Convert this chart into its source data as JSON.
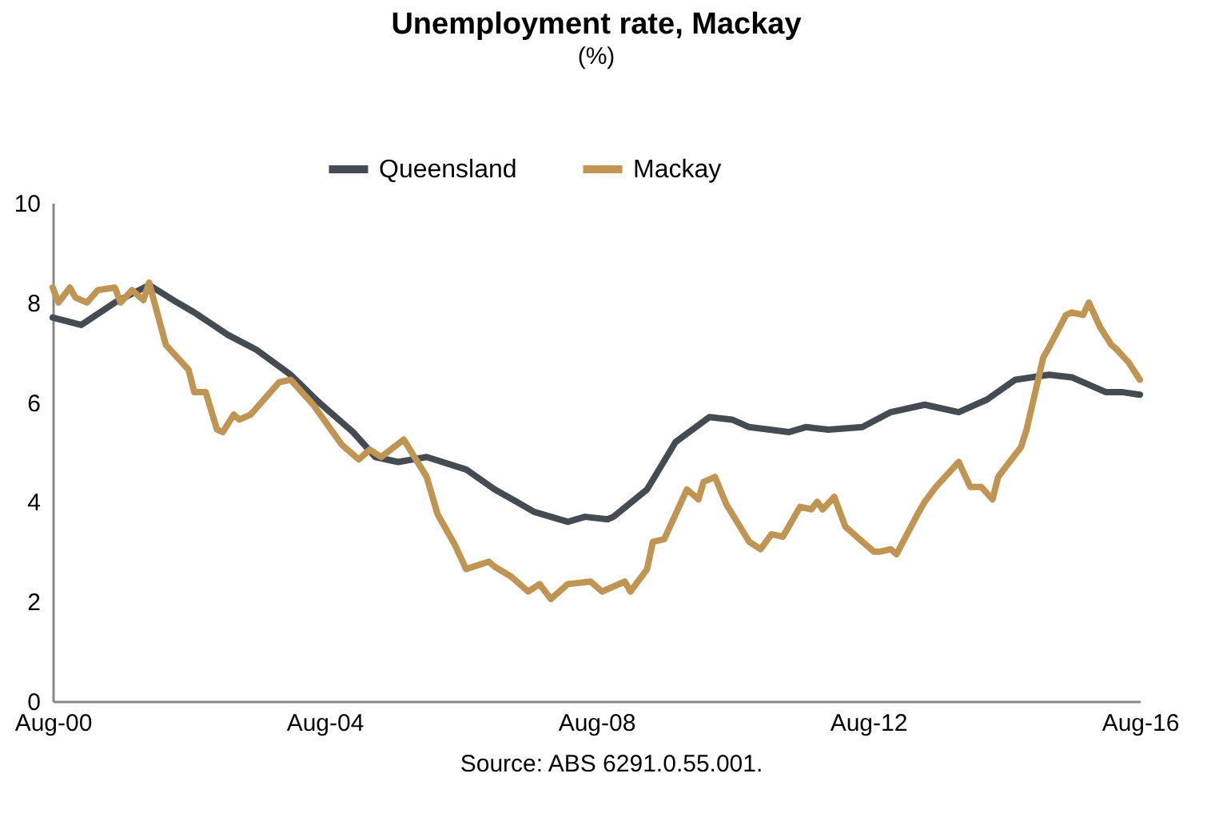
{
  "chart_data": {
    "type": "line",
    "title": "Unemployment rate, Mackay",
    "subtitle": "(%)",
    "annotations": [
      "Source: ABS 6291.0.55.001."
    ],
    "legend": "top",
    "grid": false,
    "marker": "none",
    "line_style": "solid",
    "xlim": [
      "2000-08",
      "2016-08"
    ],
    "xticks": [
      {
        "value": "2000-08",
        "label": "Aug-00"
      },
      {
        "value": "2004-08",
        "label": "Aug-04"
      },
      {
        "value": "2008-08",
        "label": "Aug-08"
      },
      {
        "value": "2012-08",
        "label": "Aug-12"
      },
      {
        "value": "2016-08",
        "label": "Aug-16"
      }
    ],
    "ylim": [
      0,
      10
    ],
    "yticks": [
      0,
      2,
      4,
      6,
      8,
      10
    ],
    "series": [
      {
        "name": "Queensland",
        "color": "#454b52",
        "x": [
          "2000-08",
          "2001-01",
          "2001-07",
          "2002-01",
          "2002-06",
          "2002-09",
          "2003-03",
          "2003-08",
          "2004-02",
          "2004-07",
          "2005-01",
          "2005-05",
          "2005-09",
          "2006-02",
          "2006-09",
          "2007-02",
          "2007-06",
          "2007-09",
          "2008-03",
          "2008-06",
          "2008-10",
          "2008-11",
          "2009-05",
          "2009-10",
          "2010-04",
          "2010-08",
          "2010-11",
          "2011-06",
          "2011-09",
          "2012-01",
          "2012-07",
          "2012-12",
          "2013-06",
          "2013-12",
          "2014-05",
          "2014-10",
          "2015-04",
          "2015-08",
          "2016-02",
          "2016-05",
          "2016-08"
        ],
        "values": [
          7.7,
          7.55,
          8.0,
          8.35,
          8.0,
          7.8,
          7.35,
          7.05,
          6.55,
          6.0,
          5.4,
          4.9,
          4.8,
          4.9,
          4.65,
          4.25,
          4.0,
          3.8,
          3.6,
          3.7,
          3.65,
          3.7,
          4.25,
          5.2,
          5.7,
          5.65,
          5.5,
          5.4,
          5.5,
          5.45,
          5.5,
          5.8,
          5.95,
          5.8,
          6.05,
          6.45,
          6.55,
          6.5,
          6.2,
          6.2,
          6.15
        ]
      },
      {
        "name": "Mackay",
        "color": "#c09453",
        "x": [
          "2000-08",
          "2000-09",
          "2000-11",
          "2000-12",
          "2001-02",
          "2001-04",
          "2001-07",
          "2001-08",
          "2001-10",
          "2001-12",
          "2002-01",
          "2002-04",
          "2002-08",
          "2002-09",
          "2002-11",
          "2003-01",
          "2003-02",
          "2003-04",
          "2003-05",
          "2003-07",
          "2003-12",
          "2004-02",
          "2004-06",
          "2004-11",
          "2005-02",
          "2005-04",
          "2005-06",
          "2005-10",
          "2006-02",
          "2006-04",
          "2006-07",
          "2006-09",
          "2007-01",
          "2007-02",
          "2007-05",
          "2007-08",
          "2007-10",
          "2007-12",
          "2008-03",
          "2008-07",
          "2008-09",
          "2009-01",
          "2009-02",
          "2009-05",
          "2009-06",
          "2009-08",
          "2009-12",
          "2010-02",
          "2010-03",
          "2010-05",
          "2010-07",
          "2010-11",
          "2011-01",
          "2011-03",
          "2011-05",
          "2011-08",
          "2011-10",
          "2011-11",
          "2011-12",
          "2012-02",
          "2012-04",
          "2012-07",
          "2012-09",
          "2012-10",
          "2012-12",
          "2013-01",
          "2013-05",
          "2013-06",
          "2013-08",
          "2013-12",
          "2014-02",
          "2014-04",
          "2014-06",
          "2014-07",
          "2014-11",
          "2014-12",
          "2015-03",
          "2015-04",
          "2015-07",
          "2015-08",
          "2015-10",
          "2015-11",
          "2016-01",
          "2016-03",
          "2016-04",
          "2016-06",
          "2016-08"
        ],
        "values": [
          8.3,
          8.0,
          8.3,
          8.1,
          8.0,
          8.25,
          8.3,
          8.0,
          8.25,
          8.05,
          8.4,
          7.15,
          6.65,
          6.2,
          6.2,
          5.45,
          5.4,
          5.75,
          5.65,
          5.75,
          6.4,
          6.45,
          5.95,
          5.15,
          4.85,
          5.05,
          4.9,
          5.25,
          4.5,
          3.75,
          3.15,
          2.65,
          2.8,
          2.7,
          2.5,
          2.2,
          2.35,
          2.05,
          2.35,
          2.4,
          2.2,
          2.4,
          2.2,
          2.65,
          3.2,
          3.25,
          4.25,
          4.05,
          4.4,
          4.5,
          3.95,
          3.2,
          3.05,
          3.35,
          3.3,
          3.9,
          3.85,
          4.0,
          3.85,
          4.1,
          3.5,
          3.2,
          3.0,
          3.0,
          3.05,
          2.95,
          3.8,
          4.0,
          4.3,
          4.8,
          4.3,
          4.3,
          4.05,
          4.5,
          5.1,
          5.45,
          6.9,
          7.1,
          7.75,
          7.8,
          7.75,
          8.0,
          7.5,
          7.15,
          7.05,
          6.8,
          6.45
        ]
      }
    ]
  }
}
